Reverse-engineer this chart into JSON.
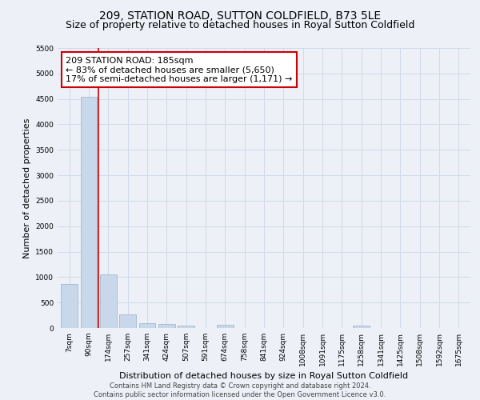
{
  "title": "209, STATION ROAD, SUTTON COLDFIELD, B73 5LE",
  "subtitle": "Size of property relative to detached houses in Royal Sutton Coldfield",
  "xlabel": "Distribution of detached houses by size in Royal Sutton Coldfield",
  "ylabel": "Number of detached properties",
  "footer_line1": "Contains HM Land Registry data © Crown copyright and database right 2024.",
  "footer_line2": "Contains public sector information licensed under the Open Government Licence v3.0.",
  "bar_labels": [
    "7sqm",
    "90sqm",
    "174sqm",
    "257sqm",
    "341sqm",
    "424sqm",
    "507sqm",
    "591sqm",
    "674sqm",
    "758sqm",
    "841sqm",
    "924sqm",
    "1008sqm",
    "1091sqm",
    "1175sqm",
    "1258sqm",
    "1341sqm",
    "1425sqm",
    "1508sqm",
    "1592sqm",
    "1675sqm"
  ],
  "bar_values": [
    870,
    4540,
    1060,
    270,
    95,
    75,
    55,
    0,
    60,
    0,
    0,
    0,
    0,
    0,
    0,
    55,
    0,
    0,
    0,
    0,
    0
  ],
  "bar_color": "#c8d8ea",
  "bar_edge_color": "#9ab0c8",
  "grid_color": "#d0daea",
  "background_color": "#edf1f7",
  "vline_color": "#cc0000",
  "annotation_text": "209 STATION ROAD: 185sqm\n← 83% of detached houses are smaller (5,650)\n17% of semi-detached houses are larger (1,171) →",
  "annotation_box_color": "#cc0000",
  "ylim": [
    0,
    5500
  ],
  "yticks": [
    0,
    500,
    1000,
    1500,
    2000,
    2500,
    3000,
    3500,
    4000,
    4500,
    5000,
    5500
  ],
  "title_fontsize": 10,
  "subtitle_fontsize": 9,
  "tick_fontsize": 6.5,
  "annotation_fontsize": 8,
  "ylabel_fontsize": 8,
  "xlabel_fontsize": 8
}
